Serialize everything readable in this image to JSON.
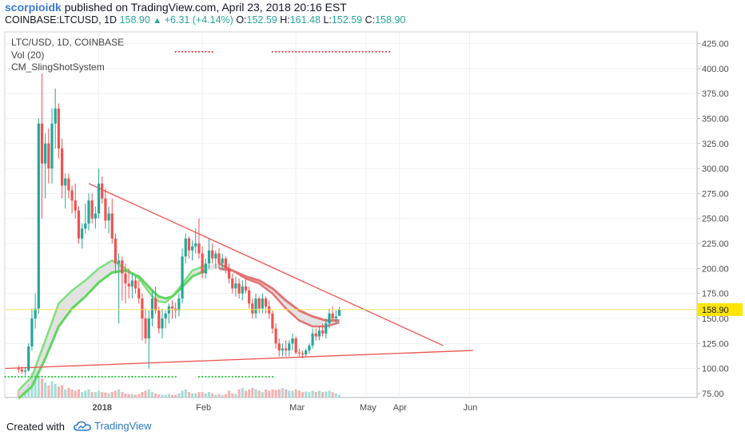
{
  "header": {
    "author": "scorpioidk",
    "published": "published on TradingView.com, April 23, 2018 20:16 EST",
    "symbol": "COINBASE:LTCUSD, 1D",
    "last": "158.90",
    "change": "+6.31 (+4.14%)",
    "o_label": "O:",
    "o": "152.59",
    "h_label": "H:",
    "h": "161.48",
    "l_label": "L:",
    "l": "152.59",
    "c_label": "C:",
    "c": "158.90"
  },
  "legend": {
    "symbol": "LTC/USD, 1D, COINBASE",
    "volume": "Vol (20)",
    "indicator": "CM_SlingShotSystem"
  },
  "footer": {
    "created_with": "Created with",
    "brand": "TradingView"
  },
  "colors": {
    "up": "#26a69a",
    "down": "#ef5350",
    "trendline": "#ef5350",
    "ema_fast_bull": "#7ee07e",
    "ema_slow_bull": "#5fd65f",
    "bear_band": "#e57373",
    "price_label_bg": "#ffe500"
  },
  "chart_data": {
    "type": "candlestick",
    "y_ticks": [
      "425.00",
      "400.00",
      "375.00",
      "350.00",
      "325.00",
      "300.00",
      "275.00",
      "250.00",
      "225.00",
      "200.00",
      "175.00",
      "150.00",
      "125.00",
      "100.00",
      "75.00"
    ],
    "ylim": [
      55,
      435
    ],
    "x_ticks": [
      "2018",
      "Feb",
      "Mar",
      "Apr",
      "May",
      "Jun"
    ],
    "last_price_label": "158.90",
    "candles": [
      [
        4,
        100,
        103,
        96,
        99
      ],
      [
        5,
        99,
        102,
        95,
        97
      ],
      [
        6,
        97,
        101,
        93,
        98
      ],
      [
        7,
        98,
        125,
        97,
        122
      ],
      [
        8,
        122,
        160,
        118,
        150
      ],
      [
        9,
        150,
        175,
        140,
        160
      ],
      [
        10,
        160,
        350,
        155,
        345
      ],
      [
        11,
        345,
        395,
        250,
        305
      ],
      [
        12,
        305,
        335,
        270,
        325
      ],
      [
        13,
        325,
        340,
        285,
        300
      ],
      [
        14,
        300,
        360,
        285,
        345
      ],
      [
        15,
        345,
        380,
        320,
        360
      ],
      [
        16,
        360,
        365,
        310,
        320
      ],
      [
        17,
        320,
        330,
        270,
        283
      ],
      [
        18,
        283,
        295,
        260,
        290
      ],
      [
        19,
        290,
        295,
        270,
        278
      ],
      [
        20,
        278,
        283,
        255,
        268
      ],
      [
        21,
        268,
        285,
        250,
        258
      ],
      [
        22,
        258,
        262,
        225,
        230
      ],
      [
        23,
        230,
        245,
        220,
        240
      ],
      [
        24,
        240,
        265,
        235,
        245
      ],
      [
        25,
        245,
        275,
        238,
        268
      ],
      [
        26,
        268,
        275,
        245,
        250
      ],
      [
        27,
        250,
        262,
        240,
        255
      ],
      [
        28,
        255,
        300,
        250,
        285
      ],
      [
        29,
        285,
        292,
        265,
        270
      ],
      [
        30,
        270,
        280,
        240,
        248
      ],
      [
        31,
        248,
        262,
        235,
        255
      ],
      [
        32,
        255,
        270,
        225,
        230
      ],
      [
        33,
        230,
        235,
        195,
        205
      ],
      [
        34,
        205,
        215,
        145,
        208
      ],
      [
        35,
        208,
        212,
        168,
        195
      ],
      [
        36,
        195,
        205,
        165,
        185
      ],
      [
        37,
        185,
        200,
        170,
        182
      ],
      [
        38,
        182,
        195,
        170,
        188
      ],
      [
        39,
        188,
        192,
        175,
        180
      ],
      [
        40,
        180,
        188,
        165,
        170
      ],
      [
        41,
        170,
        175,
        128,
        150
      ],
      [
        42,
        150,
        160,
        125,
        130
      ],
      [
        43,
        130,
        158,
        100,
        150
      ],
      [
        44,
        150,
        178,
        142,
        170
      ],
      [
        45,
        170,
        182,
        155,
        158
      ],
      [
        46,
        158,
        162,
        135,
        140
      ],
      [
        47,
        140,
        160,
        130,
        150
      ],
      [
        48,
        150,
        158,
        140,
        155
      ],
      [
        49,
        155,
        165,
        145,
        162
      ],
      [
        50,
        162,
        168,
        150,
        160
      ],
      [
        51,
        160,
        166,
        150,
        158
      ],
      [
        52,
        158,
        175,
        152,
        170
      ],
      [
        53,
        170,
        220,
        165,
        212
      ],
      [
        54,
        212,
        235,
        205,
        230
      ],
      [
        55,
        230,
        232,
        210,
        218
      ],
      [
        56,
        218,
        228,
        208,
        222
      ],
      [
        57,
        222,
        240,
        215,
        225
      ],
      [
        58,
        225,
        250,
        210,
        215
      ],
      [
        59,
        215,
        222,
        190,
        195
      ],
      [
        60,
        195,
        210,
        190,
        205
      ],
      [
        61,
        205,
        230,
        200,
        218
      ],
      [
        62,
        218,
        225,
        205,
        210
      ],
      [
        63,
        210,
        218,
        200,
        215
      ],
      [
        64,
        215,
        220,
        200,
        205
      ],
      [
        65,
        205,
        215,
        198,
        210
      ],
      [
        66,
        210,
        212,
        195,
        200
      ],
      [
        67,
        200,
        205,
        185,
        190
      ],
      [
        68,
        190,
        195,
        175,
        180
      ],
      [
        69,
        180,
        192,
        172,
        185
      ],
      [
        70,
        185,
        190,
        170,
        175
      ],
      [
        71,
        175,
        188,
        168,
        182
      ],
      [
        72,
        182,
        190,
        175,
        178
      ],
      [
        73,
        178,
        182,
        160,
        165
      ],
      [
        74,
        165,
        170,
        150,
        155
      ],
      [
        75,
        155,
        175,
        150,
        170
      ],
      [
        76,
        170,
        172,
        155,
        160
      ],
      [
        77,
        160,
        175,
        155,
        170
      ],
      [
        78,
        170,
        172,
        155,
        162
      ],
      [
        79,
        162,
        168,
        150,
        155
      ],
      [
        80,
        155,
        158,
        135,
        140
      ],
      [
        81,
        140,
        145,
        120,
        125
      ],
      [
        82,
        125,
        130,
        112,
        118
      ],
      [
        83,
        118,
        125,
        112,
        120
      ],
      [
        84,
        120,
        128,
        112,
        118
      ],
      [
        85,
        118,
        128,
        112,
        125
      ],
      [
        86,
        125,
        135,
        118,
        130
      ],
      [
        87,
        130,
        132,
        114,
        116
      ],
      [
        88,
        116,
        120,
        112,
        115
      ],
      [
        89,
        115,
        118,
        110,
        114
      ],
      [
        90,
        114,
        120,
        112,
        118
      ],
      [
        91,
        118,
        125,
        115,
        123
      ],
      [
        92,
        123,
        140,
        120,
        135
      ],
      [
        93,
        135,
        140,
        128,
        132
      ],
      [
        94,
        132,
        142,
        128,
        138
      ],
      [
        95,
        138,
        145,
        132,
        135
      ],
      [
        96,
        135,
        150,
        130,
        145
      ],
      [
        97,
        145,
        160,
        140,
        155
      ],
      [
        98,
        155,
        162,
        148,
        150
      ],
      [
        99,
        150,
        158,
        145,
        152
      ],
      [
        100,
        152.59,
        161.48,
        152.59,
        158.9
      ]
    ],
    "volume": [
      [
        4,
        0.25
      ],
      [
        5,
        0.2
      ],
      [
        6,
        0.3
      ],
      [
        7,
        0.5
      ],
      [
        8,
        0.9
      ],
      [
        9,
        1.0
      ],
      [
        10,
        0.8
      ],
      [
        11,
        0.7
      ],
      [
        12,
        0.55
      ],
      [
        13,
        0.45
      ],
      [
        14,
        0.6
      ],
      [
        15,
        0.5
      ],
      [
        16,
        0.4
      ],
      [
        17,
        0.45
      ],
      [
        18,
        0.3
      ],
      [
        19,
        0.35
      ],
      [
        20,
        0.3
      ],
      [
        21,
        0.25
      ],
      [
        22,
        0.3
      ],
      [
        23,
        0.2
      ],
      [
        24,
        0.25
      ],
      [
        25,
        0.3
      ],
      [
        26,
        0.2
      ],
      [
        27,
        0.2
      ],
      [
        28,
        0.25
      ],
      [
        29,
        0.2
      ],
      [
        30,
        0.18
      ],
      [
        31,
        0.15
      ],
      [
        32,
        0.2
      ],
      [
        33,
        0.25
      ],
      [
        34,
        0.3
      ],
      [
        35,
        0.2
      ],
      [
        36,
        0.15
      ],
      [
        37,
        0.12
      ],
      [
        38,
        0.12
      ],
      [
        39,
        0.1
      ],
      [
        40,
        0.12
      ],
      [
        41,
        0.2
      ],
      [
        42,
        0.25
      ],
      [
        43,
        0.3
      ],
      [
        44,
        0.2
      ],
      [
        45,
        0.15
      ],
      [
        46,
        0.12
      ],
      [
        47,
        0.1
      ],
      [
        48,
        0.1
      ],
      [
        49,
        0.12
      ],
      [
        50,
        0.1
      ],
      [
        51,
        0.1
      ],
      [
        52,
        0.15
      ],
      [
        53,
        0.25
      ],
      [
        54,
        0.3
      ],
      [
        55,
        0.2
      ],
      [
        56,
        0.15
      ],
      [
        57,
        0.15
      ],
      [
        58,
        0.2
      ],
      [
        59,
        0.2
      ],
      [
        60,
        0.15
      ],
      [
        61,
        0.2
      ],
      [
        62,
        0.15
      ],
      [
        63,
        0.1
      ],
      [
        64,
        0.12
      ],
      [
        65,
        0.1
      ],
      [
        66,
        0.12
      ],
      [
        67,
        0.25
      ],
      [
        68,
        0.15
      ],
      [
        69,
        0.12
      ],
      [
        70,
        0.3
      ],
      [
        71,
        0.35
      ],
      [
        72,
        0.25
      ],
      [
        73,
        0.3
      ],
      [
        74,
        0.35
      ],
      [
        75,
        0.3
      ],
      [
        76,
        0.25
      ],
      [
        77,
        0.2
      ],
      [
        78,
        0.3
      ],
      [
        79,
        0.25
      ],
      [
        80,
        0.3
      ],
      [
        81,
        0.28
      ],
      [
        82,
        0.3
      ],
      [
        83,
        0.35
      ],
      [
        84,
        0.3
      ],
      [
        85,
        0.25
      ],
      [
        86,
        0.25
      ],
      [
        87,
        0.3
      ],
      [
        88,
        0.25
      ],
      [
        89,
        0.2
      ],
      [
        90,
        0.22
      ],
      [
        91,
        0.2
      ],
      [
        92,
        0.25
      ],
      [
        93,
        0.2
      ],
      [
        94,
        0.25
      ],
      [
        95,
        0.2
      ],
      [
        96,
        0.22
      ],
      [
        97,
        0.25
      ],
      [
        98,
        0.2
      ],
      [
        99,
        0.15
      ],
      [
        100,
        0.1
      ]
    ],
    "ema_fast": [
      [
        4,
        78
      ],
      [
        8,
        92
      ],
      [
        12,
        128
      ],
      [
        16,
        165
      ],
      [
        20,
        178
      ],
      [
        24,
        188
      ],
      [
        28,
        200
      ],
      [
        32,
        208
      ],
      [
        36,
        200
      ],
      [
        40,
        190
      ],
      [
        44,
        172
      ],
      [
        46,
        167
      ],
      [
        48,
        166
      ],
      [
        50,
        172
      ],
      [
        52,
        180
      ],
      [
        56,
        198
      ],
      [
        60,
        203
      ],
      [
        64,
        205
      ],
      [
        68,
        198
      ],
      [
        72,
        190
      ],
      [
        76,
        185
      ],
      [
        80,
        175
      ],
      [
        84,
        160
      ],
      [
        88,
        148
      ],
      [
        92,
        142
      ],
      [
        96,
        142
      ],
      [
        100,
        146
      ]
    ],
    "ema_slow": [
      [
        4,
        70
      ],
      [
        8,
        82
      ],
      [
        12,
        110
      ],
      [
        16,
        142
      ],
      [
        20,
        160
      ],
      [
        24,
        172
      ],
      [
        28,
        186
      ],
      [
        32,
        196
      ],
      [
        36,
        198
      ],
      [
        40,
        192
      ],
      [
        44,
        178
      ],
      [
        46,
        172
      ],
      [
        48,
        170
      ],
      [
        50,
        172
      ],
      [
        52,
        178
      ],
      [
        56,
        192
      ],
      [
        60,
        198
      ],
      [
        64,
        200
      ],
      [
        68,
        198
      ],
      [
        72,
        192
      ],
      [
        76,
        188
      ],
      [
        80,
        180
      ],
      [
        84,
        168
      ],
      [
        88,
        158
      ],
      [
        92,
        152
      ],
      [
        96,
        148
      ],
      [
        100,
        148
      ]
    ],
    "trendlines": [
      {
        "from": [
          25,
          285
        ],
        "to": [
          131,
          123
        ]
      },
      {
        "from": [
          0,
          100
        ],
        "to": [
          140,
          118
        ]
      }
    ],
    "bear_signal_ranges": [
      [
        51,
        62
      ],
      [
        80,
        115
      ]
    ],
    "bull_signal_ranges": [
      [
        0,
        51
      ],
      [
        58,
        80
      ]
    ],
    "future_labels_days": {
      "May": 108,
      "Jun": 139
    }
  }
}
